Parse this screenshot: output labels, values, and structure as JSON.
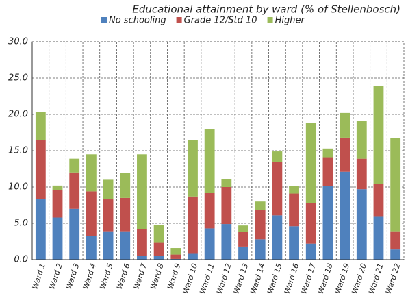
{
  "chart_data": {
    "type": "stacked_bar",
    "title": "Educational attainment  by ward (% of Stellenbosch)",
    "categories": [
      "Ward 1",
      "Ward 2",
      "Ward 3",
      "Ward 4",
      "Ward 5",
      "Ward 6",
      "Ward 7",
      "Ward 8",
      "Ward 9",
      "Ward 10",
      "Ward 11",
      "Ward 12",
      "Ward 13",
      "Ward 14",
      "Ward 15",
      "Ward 16",
      "Ward 17",
      "Ward 18",
      "Ward 19",
      "Ward 20",
      "Ward 21",
      "Ward 22"
    ],
    "series": [
      {
        "name": "No schooling",
        "color": "#4f81bd",
        "values": [
          8.3,
          5.8,
          7.0,
          3.3,
          3.9,
          3.9,
          0.5,
          0.5,
          0.1,
          0.8,
          4.3,
          4.9,
          1.8,
          2.8,
          6.1,
          4.6,
          2.2,
          10.1,
          12.1,
          9.7,
          5.9,
          1.4
        ]
      },
      {
        "name": "Grade 12/Std 10",
        "color": "#c0504d",
        "values": [
          8.2,
          3.8,
          5.0,
          6.1,
          4.4,
          4.6,
          3.7,
          1.9,
          0.6,
          7.9,
          4.9,
          5.1,
          2.0,
          4.0,
          7.3,
          4.5,
          5.6,
          4.0,
          4.7,
          4.2,
          4.5,
          2.5
        ]
      },
      {
        "name": "Higher",
        "color": "#9bbb59",
        "values": [
          3.8,
          0.6,
          1.9,
          5.1,
          2.7,
          3.4,
          10.3,
          2.4,
          0.9,
          7.8,
          8.8,
          1.1,
          0.9,
          1.2,
          1.5,
          1.0,
          11.0,
          1.2,
          3.4,
          5.2,
          13.5,
          12.8
        ]
      }
    ],
    "ylim": [
      0,
      30
    ],
    "yticks": [
      {
        "value": 0,
        "label": "0.0"
      },
      {
        "value": 5,
        "label": "5.0"
      },
      {
        "value": 10,
        "label": "10.0"
      },
      {
        "value": 15,
        "label": "15.0"
      },
      {
        "value": 20,
        "label": "20.0"
      },
      {
        "value": 25,
        "label": "25.0"
      },
      {
        "value": 30,
        "label": "30.0"
      }
    ],
    "grid": true
  }
}
